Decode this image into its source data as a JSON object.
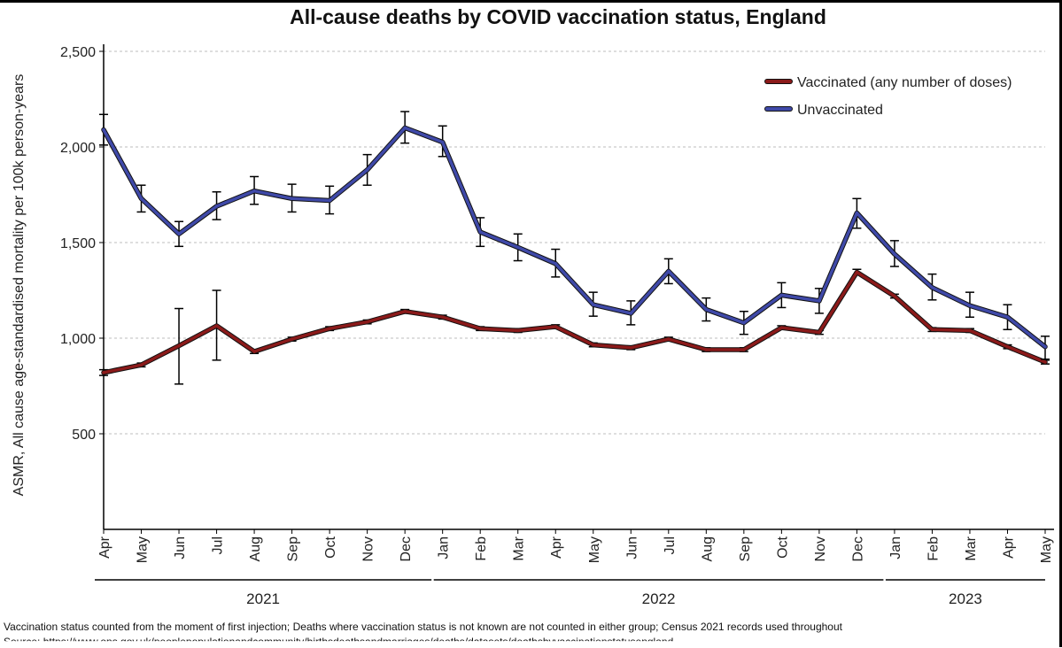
{
  "chart_data": {
    "type": "line",
    "title": "All-cause deaths by COVID vaccination status, England",
    "ylabel": "ASMR, All cause age-standardised mortality per 100k person-years",
    "xlabel": "",
    "ylim": [
      0,
      2500
    ],
    "yticks": [
      500,
      1000,
      1500,
      2000,
      2500
    ],
    "ytick_labels": [
      "500",
      "1,000",
      "1,500",
      "2,000",
      "2,500"
    ],
    "grid": "horizontal dashed",
    "legend_position": "top-right",
    "categories": [
      "Apr",
      "May",
      "Jun",
      "Jul",
      "Aug",
      "Sep",
      "Oct",
      "Nov",
      "Dec",
      "Jan",
      "Feb",
      "Mar",
      "Apr",
      "May",
      "Jun",
      "Jul",
      "Aug",
      "Sep",
      "Oct",
      "Nov",
      "Dec",
      "Jan",
      "Feb",
      "Mar",
      "Apr",
      "May"
    ],
    "year_groups": [
      {
        "label": "2021",
        "start": 0,
        "end": 8
      },
      {
        "label": "2022",
        "start": 9,
        "end": 20
      },
      {
        "label": "2023",
        "start": 21,
        "end": 25
      }
    ],
    "series": [
      {
        "name": "Vaccinated (any number of doses)",
        "color": "#8b1a1a",
        "values": [
          820,
          860,
          960,
          1065,
          930,
          995,
          1050,
          1085,
          1140,
          1110,
          1050,
          1040,
          1060,
          965,
          950,
          995,
          940,
          940,
          1055,
          1030,
          1345,
          1220,
          1045,
          1040,
          955,
          875
        ],
        "err_low": [
          805,
          850,
          760,
          885,
          920,
          985,
          1040,
          1075,
          1130,
          1100,
          1040,
          1030,
          1050,
          955,
          940,
          985,
          930,
          930,
          1045,
          1020,
          1330,
          1210,
          1035,
          1030,
          945,
          865
        ],
        "err_high": [
          835,
          870,
          1155,
          1250,
          940,
          1005,
          1060,
          1095,
          1150,
          1120,
          1060,
          1050,
          1070,
          975,
          960,
          1005,
          950,
          950,
          1065,
          1040,
          1360,
          1230,
          1055,
          1050,
          965,
          885
        ]
      },
      {
        "name": "Unvaccinated",
        "color": "#3f49a8",
        "values": [
          2090,
          1730,
          1545,
          1690,
          1770,
          1730,
          1720,
          1880,
          2100,
          2025,
          1555,
          1475,
          1390,
          1175,
          1130,
          1350,
          1150,
          1080,
          1225,
          1195,
          1655,
          1440,
          1265,
          1170,
          1110,
          955
        ],
        "err_low": [
          2010,
          1660,
          1480,
          1620,
          1700,
          1660,
          1650,
          1800,
          2020,
          1950,
          1480,
          1405,
          1320,
          1115,
          1070,
          1285,
          1090,
          1020,
          1160,
          1130,
          1575,
          1375,
          1200,
          1110,
          1045,
          890
        ],
        "err_high": [
          2170,
          1800,
          1610,
          1765,
          1845,
          1805,
          1795,
          1960,
          2185,
          2110,
          1630,
          1545,
          1465,
          1240,
          1195,
          1415,
          1210,
          1140,
          1290,
          1260,
          1730,
          1510,
          1335,
          1240,
          1175,
          1010
        ]
      }
    ]
  },
  "footnote": "Vaccination status counted from the moment of first injection; Deaths where vaccination status is not known are not counted in either group; Census 2021 records used throughout",
  "source": "Source: https://www.ons.gov.uk/peoplepopulationandcommunity/birthsdeathsandmarriages/deaths/datasets/deathsbyvaccinationstatusengland"
}
